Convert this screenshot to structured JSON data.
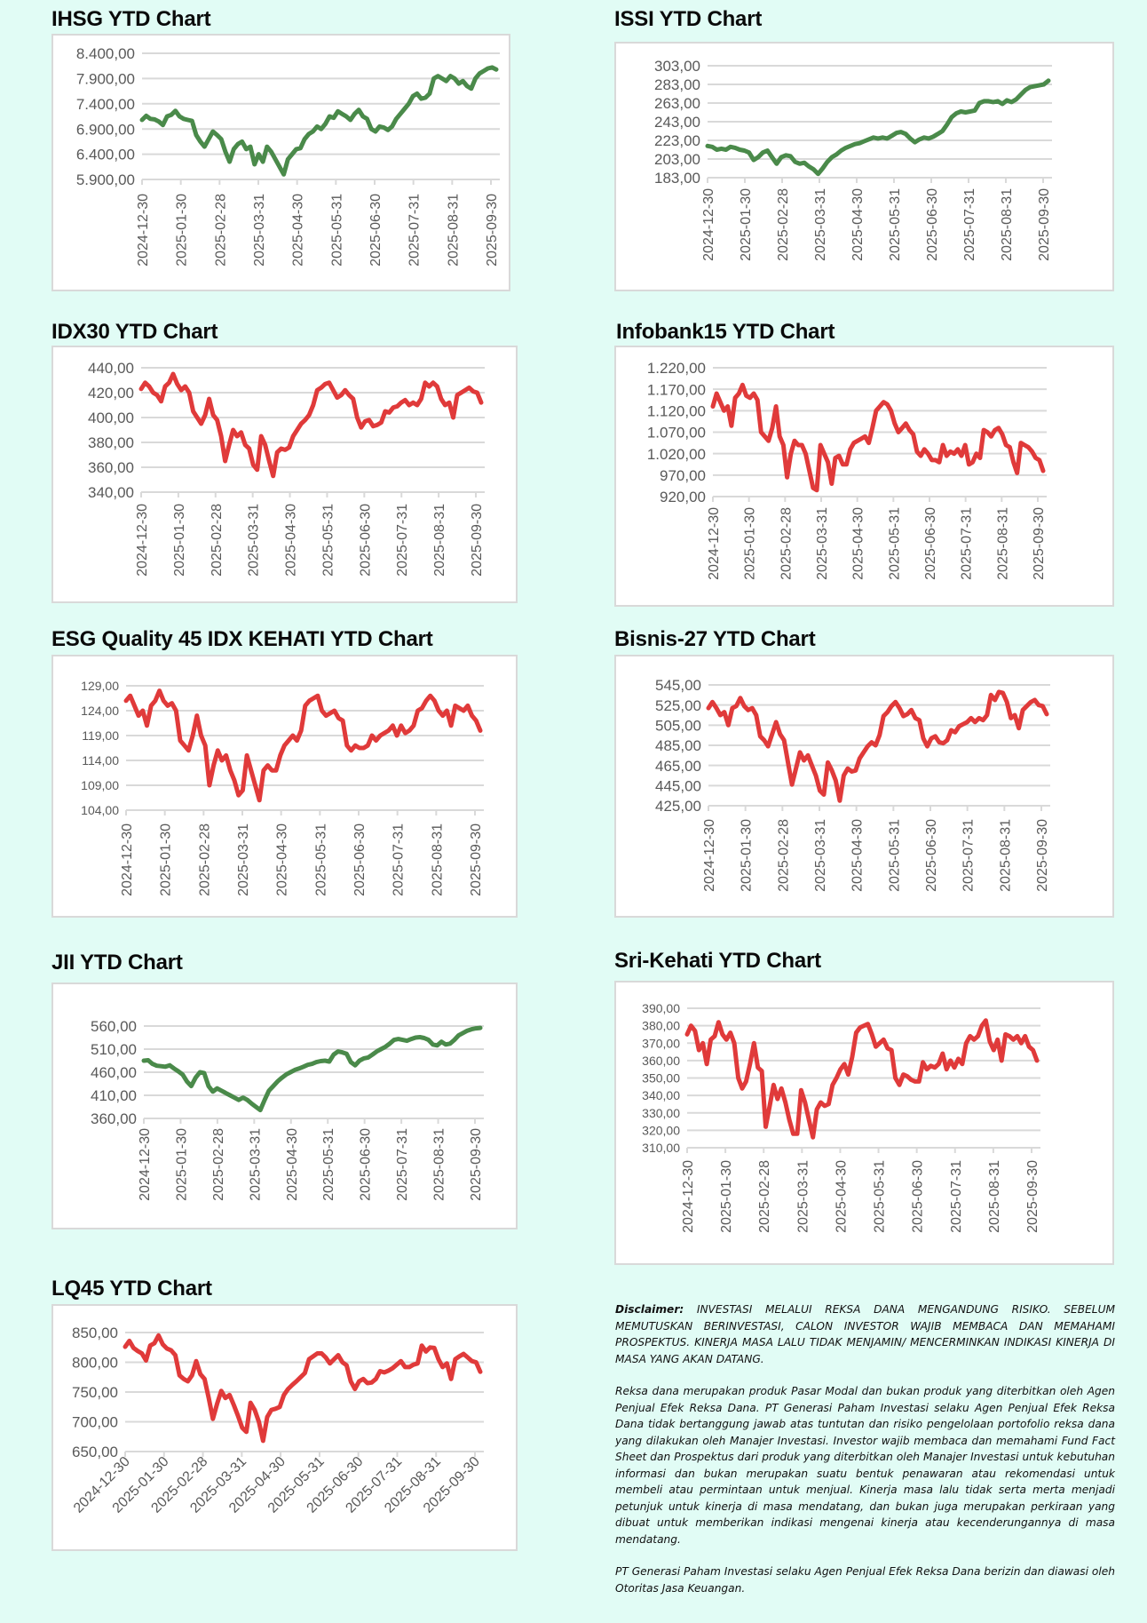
{
  "page": {
    "background": "#e1fcf5",
    "line_colors": {
      "up": "#4a8a4a",
      "down": "#e03a3a"
    }
  },
  "disclaimer": {
    "label": "Disclaimer:",
    "paragraph1": "INVESTASI MELALUI REKSA DANA MENGANDUNG RISIKO. SEBELUM MEMUTUSKAN BERINVESTASI, CALON INVESTOR WAJIB MEMBACA DAN MEMAHAMI PROSPEKTUS. KINERJA MASA LALU TIDAK MENJAMIN/ MENCERMINKAN INDIKASI KINERJA DI MASA YANG AKAN DATANG.",
    "paragraph2": "Reksa dana merupakan produk Pasar Modal dan bukan produk yang diterbitkan oleh Agen Penjual Efek Reksa Dana. PT Generasi Paham Investasi selaku Agen Penjual Efek Reksa Dana tidak bertanggung jawab atas tuntutan dan risiko pengelolaan portofolio reksa dana yang dilakukan oleh Manajer Investasi. Investor wajib membaca dan memahami Fund Fact Sheet dan Prospektus dari produk yang diterbitkan oleh Manajer Investasi untuk kebutuhan informasi dan bukan merupakan suatu bentuk penawaran atau rekomendasi untuk membeli atau permintaan untuk menjual. Kinerja masa lalu tidak serta merta menjadi petunjuk untuk kinerja di masa mendatang, dan bukan juga merupakan perkiraan yang dibuat untuk memberikan indikasi mengenai kinerja atau kecenderungannya di masa mendatang.",
    "paragraph3": "PT Generasi Paham Investasi selaku Agen Penjual Efek Reksa Dana berizin dan diawasi oleh Otoritas Jasa Keuangan."
  },
  "chart_data": [
    {
      "id": "ihsg",
      "type": "line",
      "title": "IHSG YTD Chart",
      "color": "#4a8a4a",
      "xlabel": "",
      "ylabel": "",
      "x_ticks": [
        "2024-12-30",
        "2025-01-30",
        "2025-02-28",
        "2025-03-31",
        "2025-04-30",
        "2025-05-31",
        "2025-06-30",
        "2025-07-31",
        "2025-08-31",
        "2025-09-30"
      ],
      "y_ticks": [
        "5.900,00",
        "6.400,00",
        "6.900,00",
        "7.400,00",
        "7.900,00",
        "8.400,00"
      ],
      "ylim": [
        5900,
        8400
      ],
      "grid": true,
      "legend": "none",
      "values": [
        7080,
        7160,
        7100,
        7090,
        7050,
        6980,
        7150,
        7180,
        7260,
        7150,
        7100,
        7080,
        7060,
        6780,
        6650,
        6550,
        6700,
        6850,
        6780,
        6700,
        6450,
        6250,
        6500,
        6600,
        6650,
        6500,
        6550,
        6200,
        6400,
        6250,
        6550,
        6450,
        6300,
        6150,
        6000,
        6300,
        6400,
        6500,
        6520,
        6700,
        6800,
        6850,
        6950,
        6900,
        7000,
        7150,
        7120,
        7250,
        7200,
        7150,
        7080,
        7200,
        7280,
        7150,
        7100,
        6900,
        6850,
        6950,
        6930,
        6880,
        6950,
        7100,
        7200,
        7300,
        7400,
        7550,
        7600,
        7500,
        7520,
        7600,
        7900,
        7950,
        7900,
        7850,
        7950,
        7900,
        7800,
        7850,
        7750,
        7700,
        7900,
        8000,
        8050,
        8100,
        8120,
        8080
      ]
    },
    {
      "id": "issi",
      "type": "line",
      "title": "ISSI YTD Chart",
      "color": "#4a8a4a",
      "xlabel": "",
      "ylabel": "",
      "x_ticks": [
        "2024-12-30",
        "2025-01-30",
        "2025-02-28",
        "2025-03-31",
        "2025-04-30",
        "2025-05-31",
        "2025-06-30",
        "2025-07-31",
        "2025-08-31",
        "2025-09-30"
      ],
      "y_ticks": [
        "183,00",
        "203,00",
        "223,00",
        "243,00",
        "263,00",
        "283,00",
        "303,00"
      ],
      "ylim": [
        183,
        303
      ],
      "grid": true,
      "legend": "none",
      "values": [
        217,
        216,
        213,
        214,
        213,
        216,
        215,
        213,
        212,
        210,
        202,
        205,
        210,
        212,
        205,
        198,
        205,
        207,
        206,
        200,
        198,
        199,
        195,
        192,
        187,
        193,
        200,
        205,
        208,
        212,
        215,
        217,
        219,
        220,
        222,
        224,
        226,
        225,
        226,
        225,
        228,
        231,
        232,
        230,
        225,
        221,
        224,
        226,
        225,
        227,
        230,
        233,
        240,
        248,
        252,
        254,
        253,
        254,
        255,
        263,
        265,
        265,
        264,
        265,
        262,
        266,
        264,
        267,
        272,
        277,
        280,
        281,
        282,
        283,
        287
      ]
    },
    {
      "id": "idx30",
      "type": "line",
      "title": "IDX30 YTD Chart",
      "color": "#e03a3a",
      "xlabel": "",
      "ylabel": "",
      "x_ticks": [
        "2024-12-30",
        "2025-01-30",
        "2025-02-28",
        "2025-03-31",
        "2025-04-30",
        "2025-05-31",
        "2025-06-30",
        "2025-07-31",
        "2025-08-31",
        "2025-09-30"
      ],
      "y_ticks": [
        "340,00",
        "360,00",
        "380,00",
        "400,00",
        "420,00",
        "440,00"
      ],
      "ylim": [
        340,
        440
      ],
      "grid": true,
      "legend": "none",
      "values": [
        423,
        428,
        425,
        420,
        418,
        413,
        425,
        428,
        435,
        427,
        422,
        425,
        420,
        405,
        400,
        395,
        402,
        415,
        402,
        398,
        385,
        365,
        378,
        390,
        385,
        388,
        378,
        375,
        362,
        358,
        385,
        378,
        365,
        353,
        372,
        375,
        374,
        376,
        385,
        390,
        395,
        398,
        402,
        410,
        422,
        424,
        427,
        428,
        422,
        416,
        418,
        422,
        418,
        415,
        400,
        392,
        397,
        398,
        393,
        394,
        396,
        405,
        404,
        408,
        409,
        412,
        414,
        410,
        412,
        410,
        415,
        428,
        425,
        428,
        425,
        415,
        410,
        412,
        400,
        418,
        420,
        422,
        424,
        421,
        420,
        412
      ]
    },
    {
      "id": "infobank15",
      "type": "line",
      "title": "Infobank15 YTD Chart",
      "color": "#e03a3a",
      "xlabel": "",
      "ylabel": "",
      "x_ticks": [
        "2024-12-30",
        "2025-01-30",
        "2025-02-28",
        "2025-03-31",
        "2025-04-30",
        "2025-05-31",
        "2025-06-30",
        "2025-07-31",
        "2025-08-31",
        "2025-09-30"
      ],
      "y_ticks": [
        "920,00",
        "970,00",
        "1.020,00",
        "1.070,00",
        "1.120,00",
        "1.170,00",
        "1.220,00"
      ],
      "ylim": [
        920,
        1220
      ],
      "grid": true,
      "legend": "none",
      "values": [
        1130,
        1160,
        1140,
        1120,
        1130,
        1085,
        1150,
        1160,
        1180,
        1155,
        1150,
        1160,
        1145,
        1070,
        1060,
        1050,
        1080,
        1130,
        1060,
        1040,
        965,
        1020,
        1050,
        1040,
        1040,
        1020,
        980,
        940,
        935,
        1040,
        1020,
        1000,
        950,
        1010,
        1015,
        995,
        995,
        1030,
        1045,
        1050,
        1055,
        1060,
        1045,
        1080,
        1120,
        1130,
        1140,
        1135,
        1120,
        1090,
        1070,
        1080,
        1090,
        1075,
        1065,
        1025,
        1015,
        1030,
        1020,
        1005,
        1005,
        1000,
        1040,
        1015,
        1025,
        1020,
        1030,
        1015,
        1040,
        995,
        1000,
        1020,
        1010,
        1075,
        1070,
        1060,
        1075,
        1080,
        1065,
        1040,
        1035,
        1000,
        975,
        1045,
        1040,
        1035,
        1025,
        1010,
        1005,
        980
      ]
    },
    {
      "id": "esgq45",
      "type": "line",
      "title": "ESG Quality 45 IDX KEHATI YTD Chart",
      "color": "#e03a3a",
      "xlabel": "",
      "ylabel": "",
      "x_ticks": [
        "2024-12-30",
        "2025-01-30",
        "2025-02-28",
        "2025-03-31",
        "2025-04-30",
        "2025-05-31",
        "2025-06-30",
        "2025-07-31",
        "2025-08-31",
        "2025-09-30"
      ],
      "y_ticks": [
        "104,00",
        "109,00",
        "114,00",
        "119,00",
        "124,00",
        "129,00"
      ],
      "ylim": [
        104,
        129
      ],
      "grid": true,
      "legend": "none",
      "values": [
        126,
        127,
        125,
        123,
        124,
        121,
        125,
        126,
        128,
        126,
        125,
        125.5,
        124,
        118,
        117,
        116,
        119,
        123,
        119,
        117,
        109,
        113,
        116,
        114,
        115,
        112,
        110,
        107,
        108,
        115,
        112,
        109,
        106,
        112,
        113,
        112,
        112,
        115,
        117,
        118,
        119,
        118,
        120,
        125,
        126,
        126.5,
        127,
        124,
        123,
        123.5,
        124,
        122.5,
        122,
        117,
        116,
        117,
        116.5,
        116.5,
        117,
        119,
        118,
        119,
        119.5,
        120,
        121,
        119,
        121,
        119.5,
        120,
        121,
        124,
        124.5,
        126,
        127,
        126,
        124,
        123,
        124,
        121,
        125,
        124.5,
        124,
        125,
        123,
        122,
        120
      ]
    },
    {
      "id": "bisnis27",
      "type": "line",
      "title": "Bisnis-27 YTD Chart",
      "color": "#e03a3a",
      "xlabel": "",
      "ylabel": "",
      "x_ticks": [
        "2024-12-30",
        "2025-01-30",
        "2025-02-28",
        "2025-03-31",
        "2025-04-30",
        "2025-05-31",
        "2025-06-30",
        "2025-07-31",
        "2025-08-31",
        "2025-09-30"
      ],
      "y_ticks": [
        "425,00",
        "445,00",
        "465,00",
        "485,00",
        "505,00",
        "525,00",
        "545,00"
      ],
      "ylim": [
        425,
        545
      ],
      "grid": true,
      "legend": "none",
      "values": [
        522,
        528,
        522,
        515,
        518,
        505,
        522,
        524,
        532,
        524,
        520,
        522,
        515,
        494,
        490,
        484,
        496,
        508,
        496,
        490,
        468,
        446,
        462,
        478,
        470,
        475,
        465,
        455,
        440,
        436,
        468,
        460,
        450,
        430,
        455,
        462,
        459,
        460,
        472,
        478,
        484,
        488,
        485,
        495,
        514,
        518,
        524,
        528,
        522,
        514,
        516,
        520,
        512,
        510,
        492,
        484,
        492,
        494,
        488,
        487,
        490,
        500,
        498,
        504,
        506,
        508,
        512,
        508,
        512,
        510,
        515,
        535,
        530,
        538,
        537,
        528,
        512,
        515,
        502,
        520,
        524,
        528,
        530,
        525,
        524,
        516
      ]
    },
    {
      "id": "jii",
      "type": "line",
      "title": "JII YTD Chart",
      "color": "#4a8a4a",
      "xlabel": "",
      "ylabel": "",
      "x_ticks": [
        "2024-12-30",
        "2025-01-30",
        "2025-02-28",
        "2025-03-31",
        "2025-04-30",
        "2025-05-31",
        "2025-06-30",
        "2025-07-31",
        "2025-08-31",
        "2025-09-30"
      ],
      "y_ticks": [
        "360,00",
        "410,00",
        "460,00",
        "510,00",
        "560,00"
      ],
      "ylim": [
        360,
        560
      ],
      "grid": true,
      "legend": "none",
      "values": [
        485,
        486,
        478,
        474,
        473,
        472,
        475,
        468,
        462,
        455,
        440,
        430,
        448,
        460,
        458,
        430,
        418,
        425,
        420,
        415,
        410,
        405,
        400,
        405,
        400,
        392,
        385,
        378,
        400,
        420,
        430,
        440,
        448,
        455,
        460,
        465,
        468,
        472,
        476,
        478,
        482,
        484,
        485,
        483,
        498,
        505,
        503,
        500,
        482,
        475,
        485,
        490,
        492,
        498,
        505,
        510,
        515,
        522,
        530,
        532,
        530,
        528,
        532,
        535,
        536,
        534,
        530,
        520,
        518,
        526,
        520,
        522,
        530,
        540,
        545,
        550,
        553,
        555,
        556
      ]
    },
    {
      "id": "srikehati",
      "type": "line",
      "title": "Sri-Kehati YTD Chart",
      "color": "#e03a3a",
      "xlabel": "",
      "ylabel": "",
      "x_ticks": [
        "2024-12-30",
        "2025-01-30",
        "2025-02-28",
        "2025-03-31",
        "2025-04-30",
        "2025-05-31",
        "2025-06-30",
        "2025-07-31",
        "2025-08-31",
        "2025-09-30"
      ],
      "y_ticks": [
        "310,00",
        "320,00",
        "330,00",
        "340,00",
        "350,00",
        "360,00",
        "370,00",
        "380,00",
        "390,00"
      ],
      "ylim": [
        310,
        390
      ],
      "grid": true,
      "legend": "none",
      "values": [
        375,
        380,
        377,
        366,
        370,
        358,
        372,
        374,
        382,
        375,
        372,
        376,
        370,
        350,
        344,
        348,
        358,
        370,
        356,
        354,
        322,
        334,
        346,
        338,
        344,
        336,
        326,
        318,
        318,
        343,
        336,
        326,
        316,
        332,
        336,
        334,
        335,
        346,
        350,
        355,
        358,
        352,
        362,
        376,
        379,
        380,
        381,
        375,
        368,
        370,
        372,
        367,
        366,
        350,
        346,
        352,
        351,
        349,
        348,
        348,
        359,
        355,
        357,
        356,
        358,
        364,
        355,
        360,
        356,
        361,
        358,
        370,
        374,
        372,
        374,
        380,
        383,
        371,
        366,
        372,
        360,
        375,
        374,
        372,
        374,
        370,
        374,
        368,
        366,
        360
      ]
    },
    {
      "id": "lq45",
      "type": "line",
      "title": "LQ45 YTD Chart",
      "color": "#e03a3a",
      "xlabel": "",
      "ylabel": "",
      "x_ticks": [
        "2024-12-30",
        "2025-01-30",
        "2025-02-28",
        "2025-03-31",
        "2025-04-30",
        "2025-05-31",
        "2025-06-30",
        "2025-07-31",
        "2025-08-31",
        "2025-09-30"
      ],
      "y_ticks": [
        "650,00",
        "700,00",
        "750,00",
        "800,00",
        "850,00"
      ],
      "ylim": [
        650,
        850
      ],
      "grid": true,
      "legend": "none",
      "values": [
        826,
        836,
        824,
        819,
        815,
        803,
        828,
        832,
        845,
        830,
        823,
        820,
        812,
        778,
        772,
        768,
        778,
        802,
        780,
        772,
        740,
        705,
        730,
        752,
        740,
        745,
        728,
        710,
        690,
        683,
        732,
        720,
        700,
        668,
        708,
        720,
        722,
        725,
        745,
        755,
        762,
        768,
        775,
        782,
        805,
        810,
        815,
        815,
        808,
        798,
        805,
        812,
        800,
        795,
        768,
        755,
        768,
        772,
        765,
        766,
        772,
        785,
        783,
        786,
        790,
        796,
        802,
        792,
        792,
        796,
        798,
        828,
        818,
        825,
        824,
        805,
        792,
        798,
        772,
        805,
        810,
        814,
        808,
        802,
        800,
        784
      ]
    }
  ]
}
